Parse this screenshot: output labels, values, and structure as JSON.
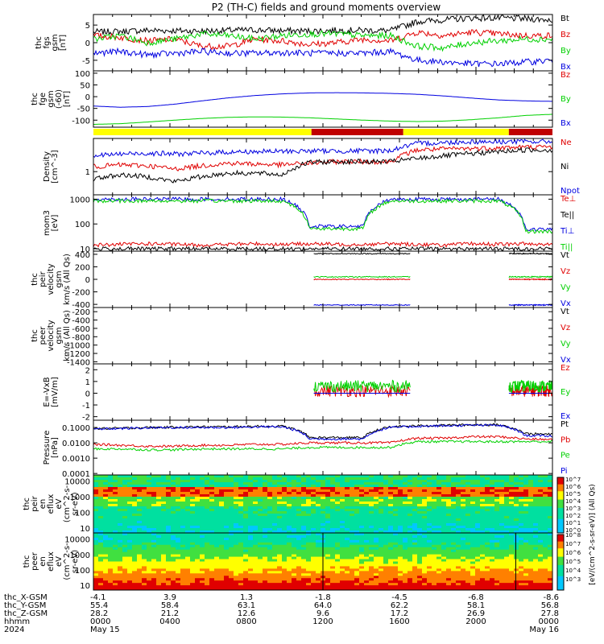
{
  "title": "P2 (TH-C) fields and ground moments overview",
  "colors": {
    "black": "#000000",
    "red": "#e00000",
    "green": "#00d000",
    "blue": "#0000e0",
    "yellow": "#ffff00",
    "darkred": "#c00000"
  },
  "chart_data": [
    {
      "type": "line",
      "panel": "fgs",
      "ylabel": [
        "thc",
        "fgs",
        "gsm",
        "[nT]"
      ],
      "yticks": [
        "5",
        "0",
        "-5"
      ],
      "ylim": [
        -8,
        8
      ],
      "series": [
        {
          "name": "Bt",
          "color": "black",
          "profile": [
            3,
            3.2,
            3.5,
            3.4,
            3.3,
            3.5,
            3.6,
            3.4,
            3.3,
            3.5,
            3.5,
            3.4,
            6,
            6.5,
            7,
            7,
            6.8,
            6.5
          ]
        },
        {
          "name": "Bz",
          "color": "red",
          "profile": [
            2,
            1.5,
            0.5,
            1,
            -1,
            -1,
            1,
            0.5,
            -0.5,
            0,
            1,
            0.5,
            3,
            2,
            3,
            2.5,
            2,
            2
          ]
        },
        {
          "name": "By",
          "color": "green",
          "profile": [
            1,
            2,
            0,
            1,
            2.5,
            2,
            1,
            2,
            2.5,
            2.5,
            2,
            2,
            -1,
            -1.5,
            0,
            0.5,
            1,
            1
          ]
        },
        {
          "name": "Bx",
          "color": "blue",
          "profile": [
            -3,
            -2.5,
            -3.5,
            -3,
            -2.5,
            -3,
            -3,
            -2.8,
            -3,
            -3,
            -3,
            -2.5,
            -5,
            -5.5,
            -6,
            -6,
            -5.5,
            -5
          ]
        }
      ]
    },
    {
      "type": "line",
      "panel": "fge",
      "ylabel": [
        "thc",
        "fge",
        "gsm",
        "(-60)",
        "[nT]"
      ],
      "yticks": [
        "100",
        "50",
        "0",
        "-50",
        "-100"
      ],
      "ylim": [
        -130,
        110
      ],
      "series": [
        {
          "name": "Bz",
          "color": "red",
          "profile": []
        },
        {
          "name": "By",
          "color": "green",
          "profile": [
            -118,
            -115,
            -108,
            -100,
            -93,
            -88,
            -86,
            -87,
            -90,
            -95,
            -100,
            -104,
            -106,
            -104,
            -98,
            -90,
            -80,
            -75
          ]
        },
        {
          "name": "Bx",
          "color": "blue",
          "profile": [
            -40,
            -45,
            -42,
            -32,
            -18,
            -5,
            5,
            12,
            16,
            17,
            16,
            14,
            10,
            3,
            -6,
            -14,
            -18,
            -20
          ]
        }
      ]
    },
    {
      "type": "bar",
      "panel": "mode-bar",
      "segments": [
        {
          "from": 0,
          "to": 0.475,
          "color": "yellow"
        },
        {
          "from": 0.475,
          "to": 0.675,
          "color": "darkred"
        },
        {
          "from": 0.675,
          "to": 0.905,
          "color": "yellow"
        },
        {
          "from": 0.905,
          "to": 1,
          "color": "darkred"
        }
      ]
    },
    {
      "type": "line",
      "panel": "density",
      "ylabel": [
        "Density",
        "[cm^-3]"
      ],
      "yticks": [
        "1"
      ],
      "ylim": [
        0.2,
        10
      ],
      "log": true,
      "series": [
        {
          "name": "Ne",
          "color": "red",
          "profile": [
            1.4,
            1.6,
            1.5,
            1.2,
            1.5,
            1.8,
            1.7,
            1.6,
            1.8,
            2,
            2,
            2,
            4.5,
            4.8,
            5,
            5.2,
            5.5,
            5.5
          ]
        },
        {
          "name": "Ni",
          "color": "black",
          "profile": [
            0.6,
            0.8,
            0.7,
            0.5,
            0.7,
            0.9,
            0.9,
            0.8,
            1.9,
            2,
            2,
            2,
            2.5,
            3,
            3.5,
            4,
            4.5,
            4.5
          ]
        },
        {
          "name": "Npot",
          "color": "blue",
          "profile": [
            3,
            3.4,
            3.6,
            3.4,
            3.6,
            3.9,
            4,
            4.1,
            4.2,
            4.2,
            4.2,
            4.3,
            7,
            7.5,
            8,
            8,
            8,
            8
          ]
        }
      ]
    },
    {
      "type": "line",
      "panel": "temperature",
      "ylabel": [
        "mom3",
        "[eV]"
      ],
      "yticks": [
        "1000",
        "100",
        "10"
      ],
      "ylim": [
        8,
        1500
      ],
      "log": true,
      "series": [
        {
          "name": "Te⊥",
          "color": "red",
          "profile": [
            14,
            15,
            16,
            15,
            14,
            15,
            16,
            15,
            16,
            15,
            15,
            16,
            15,
            14,
            16,
            15,
            16,
            15
          ]
        },
        {
          "name": "Te||",
          "color": "black",
          "profile": [
            10,
            10,
            10,
            10,
            10,
            10,
            10,
            10,
            10,
            10,
            10,
            10,
            10,
            10,
            10,
            10,
            10,
            10
          ]
        },
        {
          "name": "Ti⊥",
          "color": "blue",
          "profile": [
            1000,
            1000,
            1000,
            1000,
            1000,
            1000,
            1000,
            1000,
            80,
            80,
            80,
            1000,
            1000,
            1000,
            1000,
            1000,
            60,
            60
          ]
        },
        {
          "name": "Ti||",
          "color": "green",
          "profile": [
            850,
            850,
            850,
            850,
            850,
            850,
            850,
            850,
            65,
            65,
            65,
            850,
            850,
            850,
            850,
            850,
            50,
            50
          ]
        }
      ]
    },
    {
      "type": "line",
      "panel": "peir-velocity",
      "ylabel": [
        "thc",
        "peir",
        "velocity",
        "gsm",
        "km/s (All Qs)"
      ],
      "yticks": [
        "400",
        "200",
        "0",
        "-200",
        "-400"
      ],
      "ylim": [
        -450,
        450
      ],
      "series": [
        {
          "name": "Vt",
          "color": "black",
          "profile": []
        },
        {
          "name": "Vz",
          "color": "red",
          "profile": []
        },
        {
          "name": "Vy",
          "color": "green",
          "profile": []
        },
        {
          "name": "Vx",
          "color": "blue",
          "profile": []
        }
      ]
    },
    {
      "type": "line",
      "panel": "peer-velocity",
      "ylabel": [
        "thc",
        "peer",
        "velocity",
        "gsm",
        "km/s (All Qs)"
      ],
      "yticks": [
        "-200",
        "-400",
        "-600",
        "-800",
        "-1000",
        "-1200",
        "-1400"
      ],
      "ylim": [
        -1450,
        -100
      ],
      "series": [
        {
          "name": "Vt",
          "color": "black",
          "profile": []
        },
        {
          "name": "Vz",
          "color": "red",
          "profile": []
        },
        {
          "name": "Vy",
          "color": "green",
          "profile": []
        },
        {
          "name": "Vx",
          "color": "blue",
          "profile": []
        }
      ]
    },
    {
      "type": "line",
      "panel": "efield",
      "ylabel": [
        "E=-VxB",
        "[mV/m]"
      ],
      "yticks": [
        "2",
        "1",
        "0",
        "-1",
        "-2"
      ],
      "ylim": [
        -2.3,
        2.5
      ],
      "series": [
        {
          "name": "Ez",
          "color": "red",
          "profile": []
        },
        {
          "name": "Ey",
          "color": "green",
          "profile": []
        },
        {
          "name": "Ex",
          "color": "blue",
          "profile": []
        }
      ]
    },
    {
      "type": "line",
      "panel": "pressure",
      "ylabel": [
        "Pressure",
        "[nPa]"
      ],
      "yticks": [
        "0.1000",
        "0.0100",
        "0.0010",
        "0.0001"
      ],
      "ylim": [
        8e-05,
        0.3
      ],
      "log": true,
      "series": [
        {
          "name": "Pt",
          "color": "black",
          "profile": [
            0.085,
            0.09,
            0.1,
            0.105,
            0.11,
            0.11,
            0.12,
            0.12,
            0.022,
            0.022,
            0.022,
            0.11,
            0.13,
            0.14,
            0.15,
            0.15,
            0.04,
            0.035
          ]
        },
        {
          "name": "Pb",
          "color": "red",
          "profile": [
            0.008,
            0.007,
            0.006,
            0.006,
            0.007,
            0.007,
            0.008,
            0.008,
            0.01,
            0.01,
            0.01,
            0.01,
            0.02,
            0.02,
            0.025,
            0.025,
            0.018,
            0.016
          ]
        },
        {
          "name": "Pe",
          "color": "green",
          "profile": [
            0.004,
            0.004,
            0.0035,
            0.0035,
            0.004,
            0.004,
            0.004,
            0.004,
            0.005,
            0.005,
            0.005,
            0.005,
            0.012,
            0.012,
            0.012,
            0.012,
            0.012,
            0.012
          ]
        },
        {
          "name": "Pi",
          "color": "blue",
          "profile": [
            0.08,
            0.085,
            0.095,
            0.1,
            0.1,
            0.1,
            0.11,
            0.11,
            0.018,
            0.018,
            0.018,
            0.1,
            0.12,
            0.13,
            0.14,
            0.14,
            0.03,
            0.028
          ]
        }
      ]
    },
    {
      "type": "heatmap",
      "panel": "peir-spectrogram",
      "ylabel": [
        "thc",
        "peir",
        "en",
        "eflux",
        "eV",
        "(cm^2-s-",
        "sr-eV)"
      ],
      "yticks": [
        "10000",
        "1000",
        "100",
        "10"
      ],
      "ylim": [
        5,
        25000
      ],
      "log": true
    },
    {
      "type": "heatmap",
      "panel": "peer-spectrogram",
      "ylabel": [
        "thc",
        "peer",
        "en",
        "eflux",
        "eV",
        "(cm^2-s-",
        "sr-eV)"
      ],
      "yticks": [
        "10000",
        "1000",
        "100",
        "10"
      ],
      "ylim": [
        5,
        25000
      ],
      "log": true
    }
  ],
  "legends": [
    [
      "Bt",
      "Bz",
      "By",
      "Bx"
    ],
    [
      "Bz",
      "By",
      "Bx"
    ],
    [
      "Ne",
      "Ni",
      "Npot"
    ],
    [
      "Te⊥",
      "Te||",
      "Ti⊥",
      "Ti||"
    ],
    [
      "Vt",
      "Vz",
      "Vy",
      "Vx"
    ],
    [
      "Vt",
      "Vz",
      "Vy",
      "Vx"
    ],
    [
      "Ez",
      "Ey",
      "Ex"
    ],
    [
      "Pt",
      "Pb",
      "Pe",
      "Pi"
    ]
  ],
  "colorbar": {
    "label": "[eV/(cm^2-s-sr-eV)] (All Qs)",
    "top_ticks": [
      "10^7",
      "10^6",
      "10^5",
      "10^4",
      "10^3",
      "10^2",
      "10^1",
      "10^0"
    ],
    "bottom_ticks": [
      "10^8",
      "10^7",
      "10^6",
      "10^5",
      "10^4",
      "10^3"
    ]
  },
  "x_axis": {
    "row_labels": [
      "thc_X-GSM",
      "thc_Y-GSM",
      "thc_Z-GSM",
      "hhmm",
      "2024"
    ],
    "columns": [
      {
        "x": "-4.1",
        "y": "55.4",
        "z": "28.2",
        "hhmm": "0000",
        "date": "May 15"
      },
      {
        "x": "3.9",
        "y": "58.4",
        "z": "21.2",
        "hhmm": "0400",
        "date": ""
      },
      {
        "x": "1.3",
        "y": "63.1",
        "z": "12.6",
        "hhmm": "0800",
        "date": ""
      },
      {
        "x": "-1.8",
        "y": "64.0",
        "z": "9.6",
        "hhmm": "1200",
        "date": ""
      },
      {
        "x": "-4.5",
        "y": "62.2",
        "z": "17.2",
        "hhmm": "1600",
        "date": ""
      },
      {
        "x": "-6.8",
        "y": "58.1",
        "z": "26.9",
        "hhmm": "2000",
        "date": ""
      },
      {
        "x": "-8.6",
        "y": "56.8",
        "z": "27.8",
        "hhmm": "0000",
        "date": "May 16"
      }
    ]
  }
}
